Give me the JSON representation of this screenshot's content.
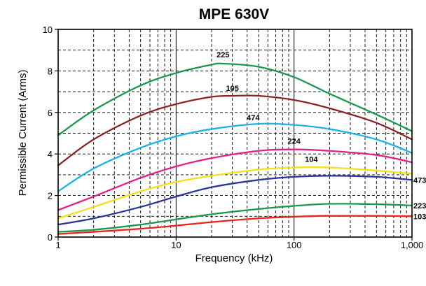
{
  "chart_data": {
    "type": "line",
    "title": "MPE 630V",
    "xlabel": "Frequency (kHz)",
    "ylabel": "Permissible Current (Arms)",
    "x_scale": "log",
    "xlim": [
      1,
      1000
    ],
    "ylim": [
      0,
      10
    ],
    "x_ticks": [
      {
        "value": 1,
        "label": "1"
      },
      {
        "value": 10,
        "label": "10"
      },
      {
        "value": 100,
        "label": "100"
      },
      {
        "value": 1000,
        "label": "1,000"
      }
    ],
    "y_ticks": [
      {
        "value": 0,
        "label": "0"
      },
      {
        "value": 2,
        "label": "2"
      },
      {
        "value": 4,
        "label": "4"
      },
      {
        "value": 6,
        "label": "6"
      },
      {
        "value": 8,
        "label": "8"
      },
      {
        "value": 10,
        "label": "10"
      }
    ],
    "grid": true,
    "series": [
      {
        "name": "225",
        "color": "#1a9850",
        "x": [
          1,
          2,
          5,
          10,
          20,
          25,
          50,
          100,
          200,
          500,
          1000
        ],
        "y": [
          4.9,
          6.1,
          7.3,
          7.9,
          8.3,
          8.35,
          8.2,
          7.7,
          6.9,
          5.9,
          5.1
        ]
      },
      {
        "name": "105",
        "color": "#8b2323",
        "x": [
          1,
          2,
          5,
          10,
          20,
          30,
          50,
          100,
          200,
          500,
          1000
        ],
        "y": [
          3.45,
          4.7,
          5.85,
          6.4,
          6.75,
          6.8,
          6.8,
          6.6,
          6.2,
          5.5,
          4.7
        ]
      },
      {
        "name": "474",
        "color": "#1ab2e8",
        "x": [
          1,
          2,
          5,
          10,
          20,
          50,
          100,
          200,
          500,
          1000
        ],
        "y": [
          2.2,
          3.3,
          4.3,
          4.85,
          5.2,
          5.45,
          5.4,
          5.2,
          4.7,
          4.05
        ]
      },
      {
        "name": "224",
        "color": "#e0218a",
        "x": [
          1,
          2,
          5,
          10,
          20,
          50,
          100,
          200,
          500,
          1000
        ],
        "y": [
          1.3,
          1.95,
          2.85,
          3.4,
          3.8,
          4.15,
          4.22,
          4.15,
          3.95,
          3.6
        ]
      },
      {
        "name": "104",
        "color": "#f5e11a",
        "x": [
          1,
          2,
          5,
          10,
          20,
          50,
          100,
          200,
          500,
          1000
        ],
        "y": [
          0.9,
          1.45,
          2.2,
          2.65,
          2.95,
          3.25,
          3.35,
          3.35,
          3.2,
          3.05
        ]
      },
      {
        "name": "473",
        "color": "#2b3598",
        "x": [
          1,
          2,
          5,
          10,
          20,
          50,
          100,
          200,
          500,
          1000
        ],
        "y": [
          0.6,
          0.9,
          1.45,
          1.95,
          2.4,
          2.75,
          2.9,
          2.95,
          2.9,
          2.75
        ]
      },
      {
        "name": "223",
        "color": "#1a9850",
        "x": [
          1,
          2,
          5,
          10,
          20,
          50,
          100,
          200,
          500,
          1000
        ],
        "y": [
          0.25,
          0.35,
          0.6,
          0.85,
          1.1,
          1.35,
          1.5,
          1.6,
          1.58,
          1.52
        ]
      },
      {
        "name": "103",
        "color": "#e8251c",
        "x": [
          1,
          2,
          5,
          10,
          20,
          50,
          100,
          200,
          500,
          1000
        ],
        "y": [
          0.15,
          0.25,
          0.4,
          0.55,
          0.72,
          0.9,
          0.98,
          1.02,
          1.02,
          1.0
        ]
      }
    ]
  }
}
